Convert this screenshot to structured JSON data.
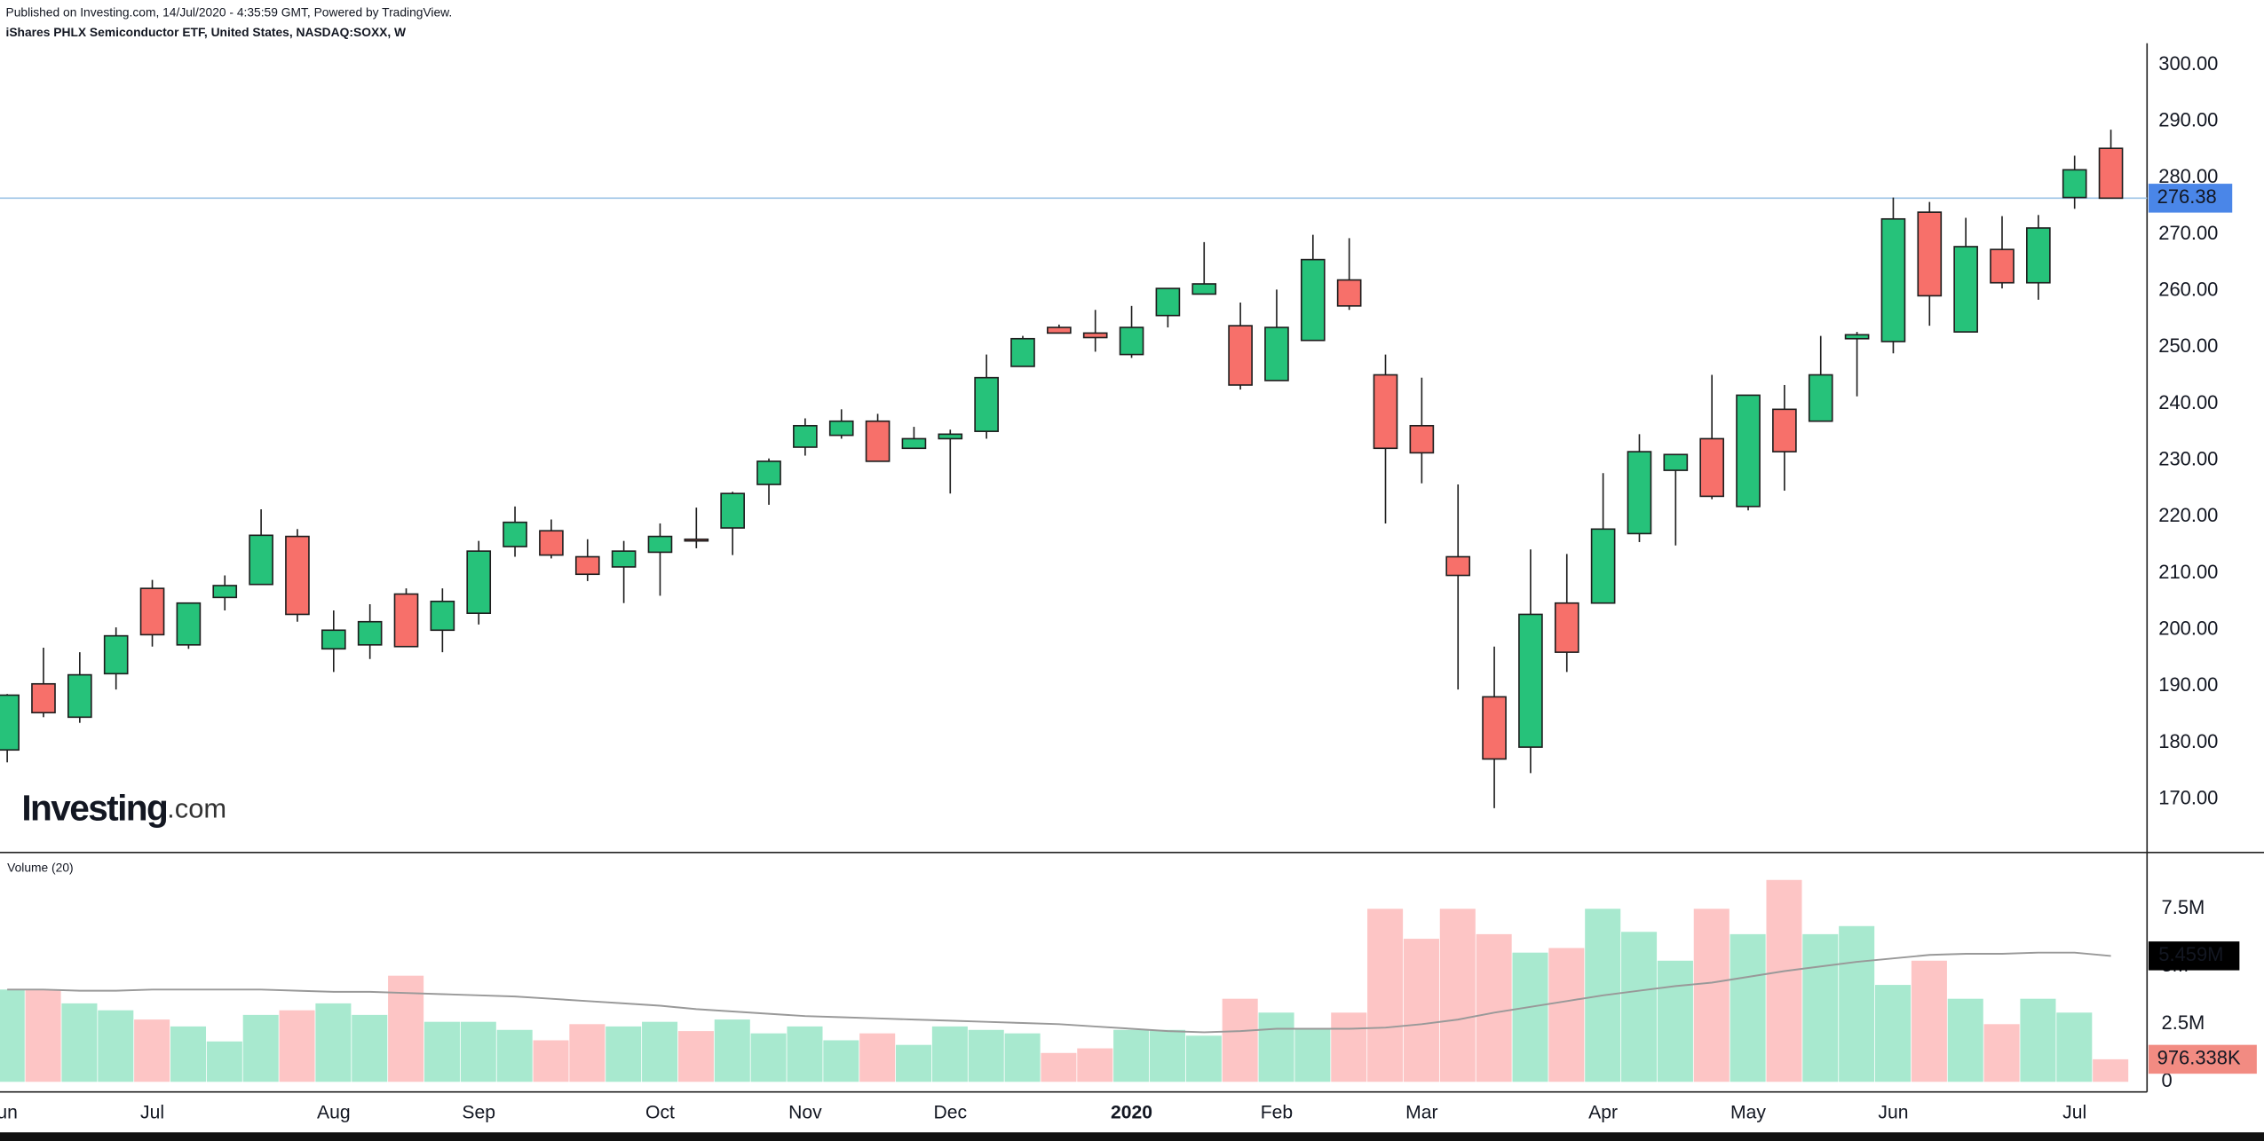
{
  "chart_data": {
    "type": "candlestick",
    "subtitle": "Published on Investing.com, 14/Jul/2020 - 4:35:59 GMT, Powered by TradingView.",
    "title": "iShares PHLX Semiconductor ETF, United States, NASDAQ:SOXX, W",
    "categories": [
      "un",
      null,
      null,
      null,
      "Jul",
      null,
      null,
      null,
      null,
      "Aug",
      null,
      null,
      null,
      "Sep",
      null,
      null,
      null,
      null,
      "Oct",
      null,
      null,
      null,
      "Nov",
      null,
      null,
      null,
      "Dec",
      null,
      null,
      null,
      null,
      "2020",
      null,
      null,
      null,
      "Feb",
      null,
      null,
      null,
      "Mar",
      null,
      null,
      null,
      null,
      "Apr",
      null,
      null,
      null,
      "May",
      null,
      null,
      null,
      "Jun",
      null,
      null,
      null,
      null,
      "Jul",
      null
    ],
    "open": [
      178.7,
      190.4,
      184.5,
      192.2,
      207.3,
      197.3,
      205.7,
      208,
      216.5,
      196.6,
      197.3,
      206.3,
      199.9,
      202.9,
      214.7,
      217.5,
      212.9,
      211.1,
      213.7,
      216,
      218,
      225.7,
      232.3,
      234.4,
      236.9,
      232.1,
      233.8,
      235.1,
      246.6,
      253.5,
      252.5,
      248.7,
      255.6,
      259.4,
      253.8,
      244.1,
      251.2,
      261.9,
      245.1,
      236.1,
      212.9,
      188.1,
      179.2,
      204.7,
      204.7,
      217,
      228.2,
      233.8,
      221.8,
      239,
      236.9,
      251.5,
      251,
      273.9,
      252.7,
      267.3,
      261.4,
      276.5,
      285.2
    ],
    "high": [
      188.6,
      196.8,
      196,
      200.4,
      208.8,
      204.7,
      209.6,
      221.3,
      217.8,
      203.4,
      204.5,
      207.3,
      207.3,
      215.7,
      221.8,
      219.5,
      216,
      215.7,
      218.8,
      221.6,
      224.4,
      230.3,
      237.4,
      239,
      238.2,
      235.9,
      235.4,
      248.7,
      252,
      254,
      256.6,
      257.3,
      260.4,
      268.6,
      257.9,
      260.2,
      269.9,
      269.3,
      248.7,
      244.6,
      225.7,
      197,
      214.2,
      213.4,
      227.7,
      234.6,
      231,
      245.1,
      241.5,
      243.3,
      252,
      252.7,
      276.5,
      275.7,
      272.9,
      273.2,
      273.4,
      283.9,
      288.5
    ],
    "low": [
      176.5,
      184.5,
      183.5,
      189.4,
      197,
      196.6,
      203.4,
      208,
      201.4,
      192.5,
      194.8,
      197,
      196,
      200.9,
      212.9,
      212.6,
      208.6,
      204.7,
      206,
      214.4,
      213.2,
      222.1,
      230.8,
      233.8,
      229.8,
      232.1,
      224.1,
      233.8,
      246.6,
      252.5,
      249.2,
      248.1,
      253.5,
      259.4,
      242.5,
      244.1,
      251.2,
      256.6,
      218.8,
      225.9,
      189.4,
      168.4,
      174.6,
      192.5,
      204.7,
      215.5,
      214.9,
      223.1,
      221.1,
      224.6,
      236.9,
      241.3,
      248.9,
      253.8,
      252.7,
      260.4,
      258.4,
      274.5,
      276.38
    ],
    "close": [
      188.4,
      185.3,
      192,
      198.9,
      199.1,
      204.7,
      207.8,
      216.7,
      202.7,
      199.9,
      201.4,
      197,
      205,
      213.9,
      219,
      213.2,
      209.8,
      213.9,
      216.5,
      215.7,
      224.1,
      229.8,
      236.1,
      236.9,
      229.8,
      233.8,
      234.6,
      244.6,
      251.5,
      252.5,
      251.7,
      253.5,
      260.4,
      261.2,
      243.3,
      253.5,
      265.5,
      257.3,
      232.1,
      231.3,
      209.6,
      177.1,
      202.7,
      196,
      217.8,
      231.5,
      231,
      223.6,
      241.5,
      231.5,
      245.1,
      252.2,
      272.7,
      259.1,
      267.8,
      261.4,
      271.1,
      281.4,
      276.38
    ],
    "up_color": "#26c27a",
    "down_color": "#f7706a",
    "ylim": [
      160.8,
      303.8
    ],
    "yticks": [
      {
        "value": 170,
        "label": "170.00"
      },
      {
        "value": 180,
        "label": "180.00"
      },
      {
        "value": 190,
        "label": "190.00"
      },
      {
        "value": 200,
        "label": "200.00"
      },
      {
        "value": 210,
        "label": "210.00"
      },
      {
        "value": 220,
        "label": "220.00"
      },
      {
        "value": 230,
        "label": "230.00"
      },
      {
        "value": 240,
        "label": "240.00"
      },
      {
        "value": 250,
        "label": "250.00"
      },
      {
        "value": 260,
        "label": "260.00"
      },
      {
        "value": 270,
        "label": "270.00"
      },
      {
        "value": 280,
        "label": "280.00"
      },
      {
        "value": 290,
        "label": "290.00"
      },
      {
        "value": 300,
        "label": "300.00"
      }
    ],
    "grid": false,
    "volume": {
      "label": "Volume (20)",
      "values": [
        4.0,
        4.0,
        3.4,
        3.1,
        2.7,
        2.4,
        1.75,
        2.9,
        3.1,
        3.4,
        2.9,
        4.6,
        2.6,
        2.6,
        2.25,
        1.8,
        2.5,
        2.4,
        2.6,
        2.2,
        2.7,
        2.1,
        2.4,
        1.8,
        2.1,
        1.6,
        2.4,
        2.25,
        2.1,
        1.25,
        1.45,
        2.25,
        2.25,
        2.0,
        3.6,
        3.0,
        2.3,
        3.0,
        7.5,
        6.2,
        7.5,
        6.4,
        5.6,
        5.8,
        7.5,
        6.5,
        5.25,
        7.5,
        6.4,
        8.75,
        6.4,
        6.75,
        4.2,
        5.25,
        3.6,
        2.5,
        3.6,
        3.0,
        0.976338
      ],
      "last_label": "976.338K",
      "up_color": "#a8e9cf",
      "down_color": "#fdc5c5",
      "ma": [
        4.0,
        4.0,
        3.95,
        3.95,
        4.0,
        4.0,
        4.0,
        4.0,
        3.95,
        3.9,
        3.9,
        3.85,
        3.8,
        3.75,
        3.7,
        3.6,
        3.5,
        3.4,
        3.3,
        3.15,
        3.05,
        2.95,
        2.85,
        2.8,
        2.75,
        2.7,
        2.65,
        2.6,
        2.55,
        2.5,
        2.4,
        2.3,
        2.2,
        2.15,
        2.2,
        2.3,
        2.3,
        2.3,
        2.35,
        2.5,
        2.7,
        3.0,
        3.25,
        3.5,
        3.75,
        3.95,
        4.15,
        4.3,
        4.55,
        4.8,
        5.0,
        5.2,
        5.35,
        5.5,
        5.55,
        5.55,
        5.6,
        5.6,
        5.459
      ],
      "ma_color": "#999999",
      "ma_last_label": "5.459M",
      "ylim": [
        -0.44,
        9.69
      ],
      "yticks": [
        0,
        {
          "value": 2.5,
          "label": "2.5M"
        },
        {
          "value": 5,
          "label": "5M"
        },
        {
          "value": 7.5,
          "label": "7.5M"
        }
      ]
    }
  },
  "logo": {
    "name": "Investing",
    "suffix": ".com"
  }
}
